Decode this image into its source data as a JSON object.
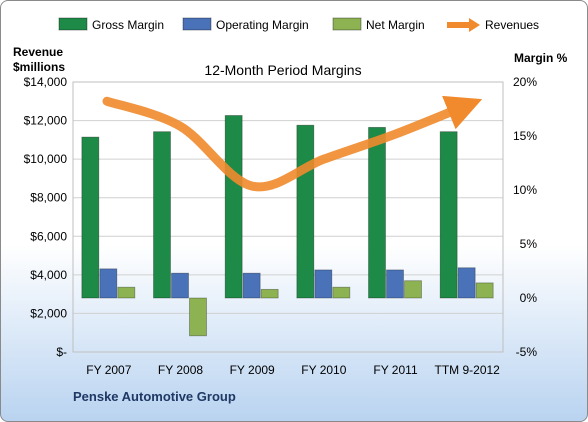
{
  "chart_data": {
    "type": "bar",
    "title": "12-Month Period Margins",
    "categories": [
      "FY 2007",
      "FY 2008",
      "FY 2009",
      "FY 2010",
      "FY 2011",
      "TTM 9-2012"
    ],
    "series": [
      {
        "name": "Gross Margin",
        "axis": "right",
        "values": [
          14.9,
          15.4,
          16.9,
          16.0,
          15.8,
          15.4
        ]
      },
      {
        "name": "Operating Margin",
        "axis": "right",
        "values": [
          2.7,
          2.3,
          2.3,
          2.6,
          2.6,
          2.8
        ]
      },
      {
        "name": "Net Margin",
        "axis": "right",
        "values": [
          1.0,
          -3.5,
          0.8,
          1.0,
          1.6,
          1.4
        ]
      },
      {
        "name": "Revenues",
        "type": "line",
        "axis": "left",
        "values": [
          12900,
          11700,
          8600,
          10000,
          11300,
          12800
        ]
      }
    ],
    "ylabel_left": [
      "Revenue",
      "$millions"
    ],
    "ylabel_right": "Margin %",
    "y_left_ticks": [
      "$-",
      "$2,000",
      "$4,000",
      "$6,000",
      "$8,000",
      "$10,000",
      "$12,000",
      "$14,000"
    ],
    "y_right_ticks": [
      "-5%",
      "0%",
      "5%",
      "10%",
      "15%",
      "20%"
    ],
    "ylim_left": [
      0,
      14000
    ],
    "ylim_right": [
      -5,
      20
    ],
    "legend_position": "top",
    "colors": {
      "Gross Margin": "#1e8a47",
      "Operating Margin": "#4a72b8",
      "Net Margin": "#8cb252",
      "Revenues": "#f08a2c"
    },
    "grid": true,
    "footer": "Penske Automotive Group"
  }
}
